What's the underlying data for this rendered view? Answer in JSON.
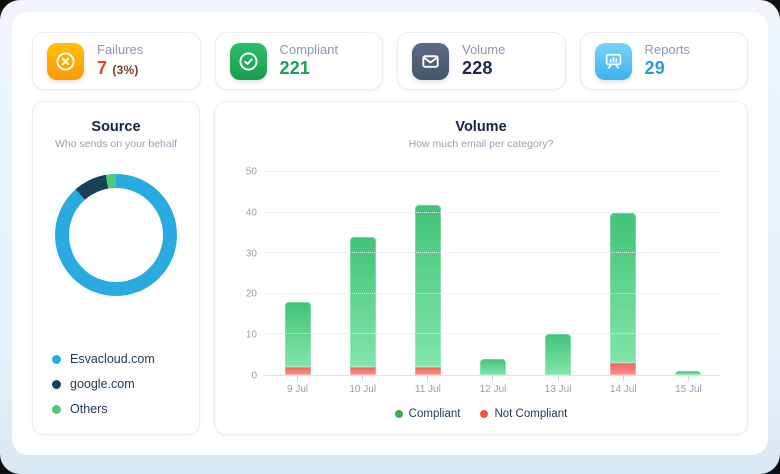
{
  "stat_cards": [
    {
      "label": "Failures",
      "value": "7",
      "suffix": "(3%)",
      "icon": "x-circle-icon",
      "icon_color": "#FF9800",
      "value_color": "#E2472D"
    },
    {
      "label": "Compliant",
      "value": "221",
      "suffix": "",
      "icon": "check-circle-icon",
      "icon_color": "#1A9C4F",
      "value_color": "#1D9E52"
    },
    {
      "label": "Volume",
      "value": "228",
      "suffix": "",
      "icon": "envelope-icon",
      "icon_color": "#46556D",
      "value_color": "#1E2B45"
    },
    {
      "label": "Reports",
      "value": "29",
      "suffix": "",
      "icon": "presentation-icon",
      "icon_color": "#3EB2EF",
      "value_color": "#2D9CDB"
    }
  ],
  "chart_data": [
    {
      "id": "source-donut",
      "type": "pie",
      "title": "Source",
      "subtitle": "Who sends on your behalf",
      "donut": true,
      "segments": [
        {
          "label": "Esvacloud.com",
          "pct": 88.5,
          "color": "#29ABE2"
        },
        {
          "label": "google.com",
          "pct": 8.8,
          "color": "#17405B"
        },
        {
          "label": "Others",
          "pct": 2.7,
          "color": "#4FC878"
        }
      ],
      "legend_position": "bottom-left"
    },
    {
      "id": "volume-bars",
      "type": "bar",
      "stacked": true,
      "title": "Volume",
      "subtitle": "How much email per category?",
      "categories": [
        "9 Jul",
        "10 Jul",
        "11 Jul",
        "12 Jul",
        "13 Jul",
        "14 Jul",
        "15 Jul"
      ],
      "series": [
        {
          "name": "Not Compliant",
          "color": "#F1635B",
          "color_light": "#F9938B",
          "values": [
            2,
            2,
            2,
            0,
            0,
            3,
            0
          ]
        },
        {
          "name": "Compliant",
          "color": "#41C477",
          "color_light": "#82E5AB",
          "values": [
            16,
            32,
            40,
            4,
            10,
            37,
            1
          ]
        }
      ],
      "totals": [
        18,
        34,
        42,
        4,
        10,
        40,
        1
      ],
      "ylim": [
        0,
        50
      ],
      "yticks": [
        0,
        10,
        20,
        30,
        40,
        50
      ],
      "grid": "dotted-horizontal",
      "legend": [
        {
          "label": "Compliant",
          "color": "#3DA94F"
        },
        {
          "label": "Not Compliant",
          "color": "#EB5445"
        }
      ],
      "legend_position": "bottom-center"
    }
  ]
}
